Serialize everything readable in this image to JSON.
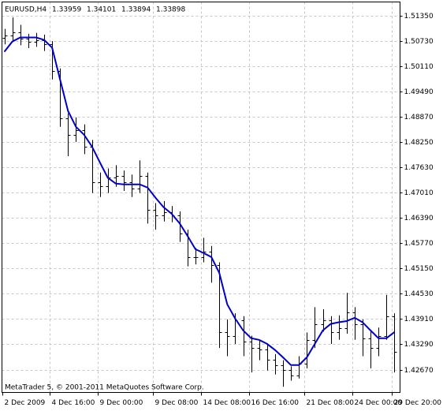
{
  "chart_data": {
    "type": "ohlc",
    "title": "EURUSD,H4",
    "header_values": [
      1.33959,
      1.34101,
      1.33894,
      1.33898
    ],
    "footer": "MetaTrader 5, © 2001-2011 MetaQuotes Software Corp.",
    "categories": [
      "2 Dec 2009",
      null,
      null,
      null,
      null,
      null,
      "4 Dec 16:00",
      null,
      null,
      null,
      null,
      null,
      "9 Dec 00:00",
      null,
      null,
      null,
      null,
      null,
      null,
      "9 Dec 08:00",
      null,
      null,
      null,
      null,
      null,
      "14 Dec 08:00",
      null,
      null,
      null,
      null,
      null,
      "16 Dec 16:00",
      null,
      null,
      null,
      null,
      null,
      null,
      "21 Dec 08:00",
      null,
      null,
      null,
      null,
      null,
      "24 Dec 00:00",
      null,
      null,
      null,
      null,
      "29 Dec 20:00"
    ],
    "open": [
      1.508,
      1.5085,
      1.5094,
      1.5079,
      1.5071,
      1.5075,
      1.5065,
      1.4998,
      1.4882,
      1.4843,
      1.4853,
      1.4814,
      1.4727,
      1.4717,
      1.4737,
      1.4742,
      1.4727,
      1.4711,
      1.4742,
      1.4659,
      1.4646,
      1.4653,
      1.4646,
      1.4601,
      1.4543,
      1.4543,
      1.4557,
      1.4524,
      1.4359,
      1.435,
      1.4388,
      1.4336,
      1.432,
      1.4317,
      1.4291,
      1.4278,
      1.4266,
      1.4253,
      1.4282,
      1.434,
      1.4379,
      1.4388,
      1.4359,
      1.4369,
      1.4408,
      1.4379,
      1.4344,
      1.432,
      1.435,
      1.4398
    ],
    "high": [
      1.5102,
      1.513,
      1.5112,
      1.509,
      1.5092,
      1.5088,
      1.5072,
      1.5005,
      1.4895,
      1.4885,
      1.4868,
      1.483,
      1.475,
      1.476,
      1.4768,
      1.4755,
      1.4745,
      1.478,
      1.475,
      1.4675,
      1.468,
      1.4668,
      1.4655,
      1.461,
      1.4565,
      1.459,
      1.457,
      1.453,
      1.439,
      1.4405,
      1.4398,
      1.435,
      1.434,
      1.433,
      1.4305,
      1.429,
      1.4275,
      1.43,
      1.4358,
      1.442,
      1.4415,
      1.4398,
      1.44,
      1.4455,
      1.442,
      1.439,
      1.436,
      1.437,
      1.445,
      1.4405
    ],
    "low": [
      1.5064,
      1.507,
      1.5062,
      1.5055,
      1.5058,
      1.5048,
      1.4978,
      1.4862,
      1.479,
      1.4825,
      1.4795,
      1.47,
      1.469,
      1.47,
      1.4715,
      1.4705,
      1.469,
      1.47,
      1.4625,
      1.461,
      1.463,
      1.4628,
      1.458,
      1.452,
      1.4525,
      1.453,
      1.448,
      1.432,
      1.43,
      1.433,
      1.43,
      1.426,
      1.429,
      1.4265,
      1.4255,
      1.4225,
      1.424,
      1.4245,
      1.427,
      1.432,
      1.436,
      1.433,
      1.434,
      1.4355,
      1.434,
      1.43,
      1.427,
      1.43,
      1.434,
      1.426
    ],
    "close": [
      1.5085,
      1.5094,
      1.5079,
      1.5071,
      1.5075,
      1.5065,
      1.4998,
      1.4882,
      1.4843,
      1.4853,
      1.4814,
      1.4727,
      1.4717,
      1.4737,
      1.4742,
      1.4727,
      1.4711,
      1.4742,
      1.4659,
      1.4646,
      1.4653,
      1.4646,
      1.4601,
      1.4543,
      1.4543,
      1.4557,
      1.4524,
      1.4359,
      1.435,
      1.4388,
      1.4336,
      1.432,
      1.4317,
      1.4291,
      1.4278,
      1.4266,
      1.4253,
      1.4282,
      1.434,
      1.4379,
      1.4388,
      1.4359,
      1.4369,
      1.4408,
      1.4379,
      1.4344,
      1.432,
      1.435,
      1.4398,
      1.4311
    ],
    "bar_color": "#000000",
    "ma": {
      "color": "#0000cc",
      "values": [
        1.5046,
        1.5071,
        1.5081,
        1.5081,
        1.5081,
        1.5075,
        1.5056,
        1.4978,
        1.4901,
        1.4862,
        1.4843,
        1.4814,
        1.4775,
        1.4737,
        1.4723,
        1.4721,
        1.4721,
        1.4721,
        1.4713,
        1.4688,
        1.4665,
        1.4649,
        1.4626,
        1.4595,
        1.4562,
        1.4553,
        1.4543,
        1.4504,
        1.4427,
        1.4392,
        1.4363,
        1.4344,
        1.434,
        1.433,
        1.4315,
        1.4297,
        1.4278,
        1.4278,
        1.4297,
        1.433,
        1.4363,
        1.4379,
        1.4383,
        1.4386,
        1.4394,
        1.4383,
        1.4363,
        1.4344,
        1.4344,
        1.4359
      ]
    },
    "ylim": [
      1.4211,
      1.5168
    ],
    "yticks": [
      {
        "value": 1.4267,
        "label": "1.42670"
      },
      {
        "value": 1.4329,
        "label": "1.43290"
      },
      {
        "value": 1.4391,
        "label": "1.43910"
      },
      {
        "value": 1.4453,
        "label": "1.44530"
      },
      {
        "value": 1.4515,
        "label": "1.45150"
      },
      {
        "value": 1.4577,
        "label": "1.45770"
      },
      {
        "value": 1.4639,
        "label": "1.46390"
      },
      {
        "value": 1.4701,
        "label": "1.47010"
      },
      {
        "value": 1.4763,
        "label": "1.47630"
      },
      {
        "value": 1.4825,
        "label": "1.48250"
      },
      {
        "value": 1.4887,
        "label": "1.48870"
      },
      {
        "value": 1.4949,
        "label": "1.49490"
      },
      {
        "value": 1.5011,
        "label": "1.50110"
      },
      {
        "value": 1.5073,
        "label": "1.50730"
      },
      {
        "value": 1.5135,
        "label": "1.51350"
      }
    ],
    "grid": true
  }
}
